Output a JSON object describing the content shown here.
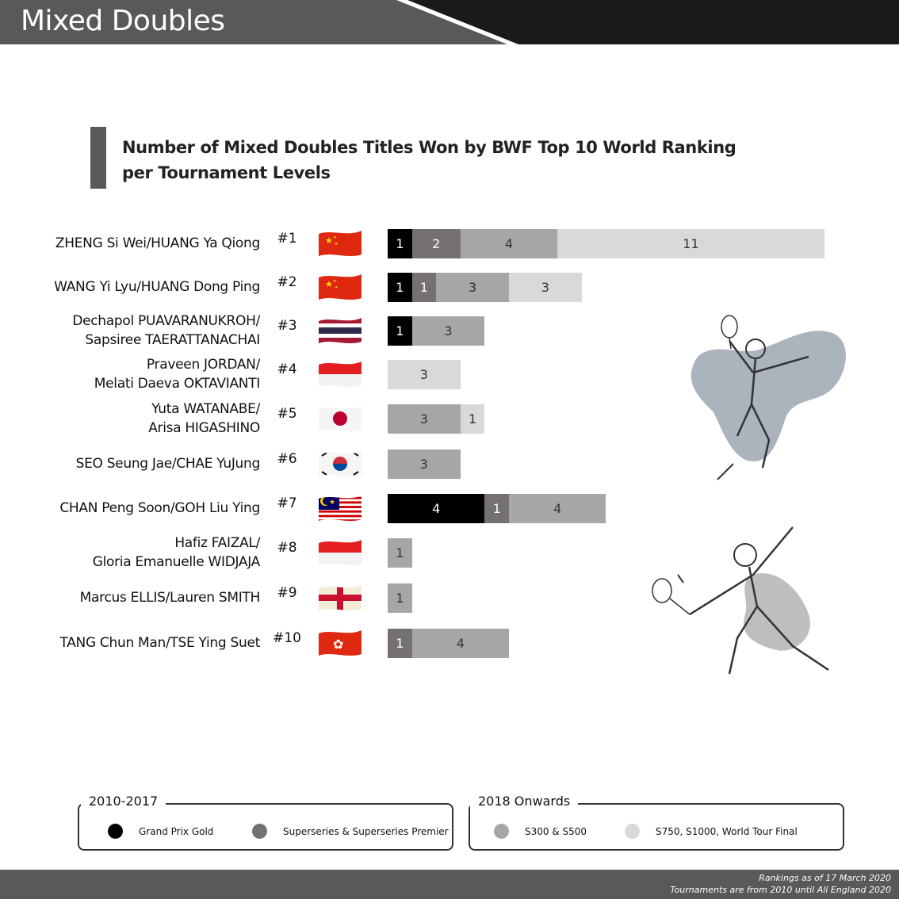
{
  "header": {
    "title": "Mixed Doubles"
  },
  "colors": {
    "grand_prix_gold": "#000000",
    "superseries": "#767171",
    "s300_s500": "#a6a6a6",
    "s750_s1000": "#d9d9d9",
    "header_dark": "#1a1a1a",
    "header_gray": "#595959"
  },
  "chart_data": {
    "type": "bar",
    "orientation": "horizontal",
    "stacked": true,
    "title": "Number of Mixed Doubles Titles Won by BWF Top 10 World Ranking per Tournament Levels",
    "title_lines": [
      "Number of Mixed Doubles Titles Won by BWF Top 10 World Ranking",
      "per Tournament Levels"
    ],
    "categories": [
      [
        "ZHENG Si Wei/HUANG Ya Qiong"
      ],
      [
        "WANG Yi Lyu/HUANG Dong Ping"
      ],
      [
        "Dechapol PUAVARANUKROH/",
        "Sapsiree TAERATTANACHAI"
      ],
      [
        "Praveen JORDAN/",
        "Melati Daeva OKTAVIANTI"
      ],
      [
        "Yuta WATANABE/",
        "Arisa HIGASHINO"
      ],
      [
        "SEO Seung Jae/CHAE YuJung"
      ],
      [
        "CHAN Peng Soon/GOH Liu Ying"
      ],
      [
        "Hafiz FAIZAL/",
        "Gloria Emanuelle WIDJAJA"
      ],
      [
        "Marcus ELLIS/Lauren SMITH"
      ],
      [
        "TANG Chun Man/TSE Ying Suet"
      ]
    ],
    "ranks": [
      "#1",
      "#2",
      "#3",
      "#4",
      "#5",
      "#6",
      "#7",
      "#8",
      "#9",
      "#10"
    ],
    "flags": [
      "china-flag",
      "china-flag",
      "thailand-flag",
      "indonesia-flag",
      "japan-flag",
      "korea-flag",
      "malaysia-flag",
      "indonesia-flag",
      "england-flag",
      "hong-kong-flag"
    ],
    "series": [
      {
        "name": "Grand Prix Gold",
        "color": "#000000",
        "values": [
          1,
          1,
          1,
          0,
          0,
          0,
          4,
          0,
          0,
          0
        ]
      },
      {
        "name": "Superseries & Superseries Premier",
        "color": "#767171",
        "values": [
          2,
          1,
          0,
          0,
          0,
          0,
          1,
          0,
          0,
          1
        ]
      },
      {
        "name": "S300 & S500",
        "color": "#a6a6a6",
        "values": [
          4,
          3,
          3,
          0,
          3,
          3,
          4,
          1,
          1,
          4
        ]
      },
      {
        "name": "S750, S1000, World Tour Final",
        "color": "#d9d9d9",
        "values": [
          11,
          3,
          0,
          3,
          1,
          0,
          0,
          0,
          0,
          0
        ]
      }
    ],
    "xlim": [
      0,
      18
    ],
    "grid": false,
    "legend_position": "bottom"
  },
  "legend": {
    "group1_label": "2010-2017",
    "group2_label": "2018 Onwards",
    "item_gpg": "Grand Prix Gold",
    "item_ss": "Superseries & Superseries Premier",
    "item_s300": "S300 & S500",
    "item_s750": "S750, S1000, World Tour Final"
  },
  "footer": {
    "line1": "Rankings as of 17 March 2020",
    "line2": "Tournaments are from 2010 until All England 2020"
  }
}
